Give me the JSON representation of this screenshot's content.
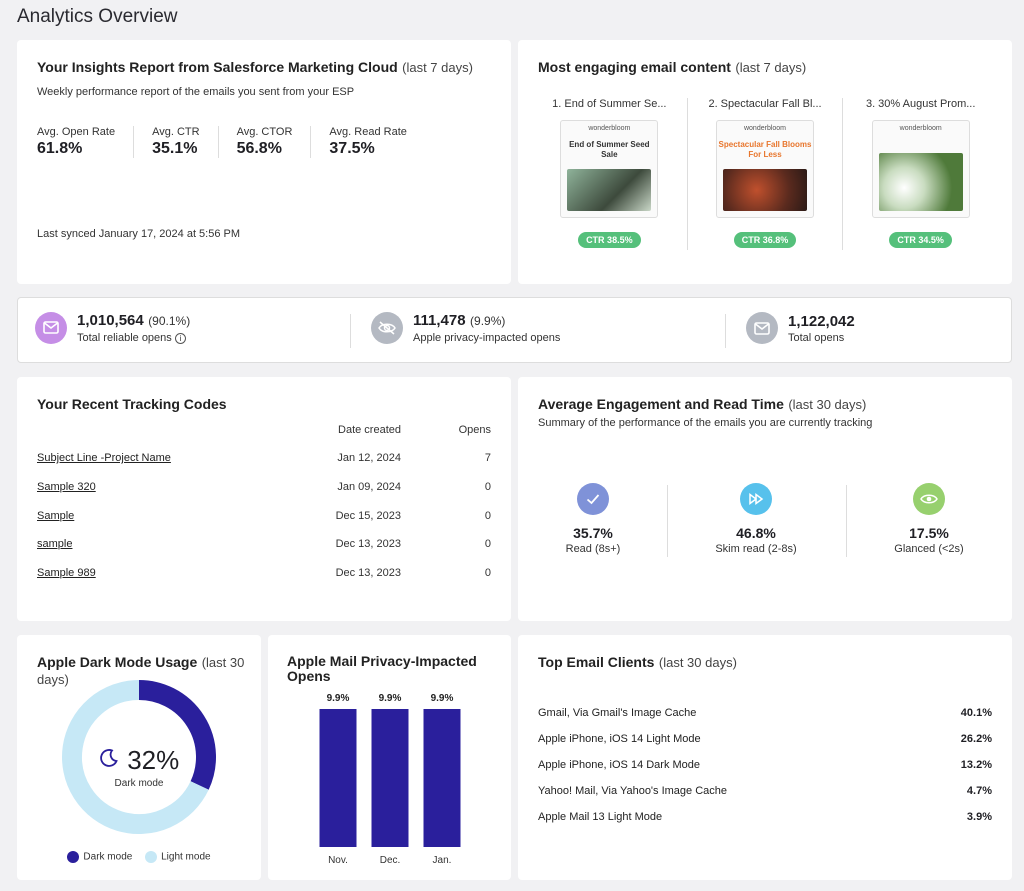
{
  "page_title": "Analytics Overview",
  "insights": {
    "title": "Your Insights Report from Salesforce Marketing Cloud",
    "period": "(last 7 days)",
    "subtitle": "Weekly performance report of the emails you sent from your ESP",
    "metrics": [
      {
        "label": "Avg. Open Rate",
        "value": "61.8%"
      },
      {
        "label": "Avg. CTR",
        "value": "35.1%"
      },
      {
        "label": "Avg. CTOR",
        "value": "56.8%"
      },
      {
        "label": "Avg. Read Rate",
        "value": "37.5%"
      }
    ],
    "synced": "Last synced January 17, 2024 at 5:56 PM"
  },
  "engaging": {
    "title": "Most engaging email content",
    "period": "(last 7 days)",
    "items": [
      {
        "name": "1. End of Summer Se...",
        "preview_logo": "wonderbloom",
        "preview_text": "End of Summer Seed Sale",
        "ctr": "CTR 38.5%"
      },
      {
        "name": "2. Spectacular Fall Bl...",
        "preview_logo": "wonderbloom",
        "preview_text": "Spectacular Fall Blooms For Less",
        "ctr": "CTR 36.8%"
      },
      {
        "name": "3. 30% August Prom...",
        "preview_logo": "wonderbloom",
        "preview_text": "",
        "ctr": "CTR 34.5%"
      }
    ]
  },
  "opens": {
    "reliable": {
      "count": "1,010,564",
      "pct": "(90.1%)",
      "label": "Total reliable opens",
      "info_icon": "info-icon"
    },
    "apple": {
      "count": "111,478",
      "pct": "(9.9%)",
      "label": "Apple privacy-impacted opens"
    },
    "total": {
      "count": "1,122,042",
      "label": "Total opens"
    },
    "colors": {
      "reliable": "#c58ee6",
      "apple": "#b4b9c2",
      "total": "#b4b9c2"
    }
  },
  "tracking": {
    "title": "Your Recent Tracking Codes",
    "col_date": "Date created",
    "col_opens": "Opens",
    "rows": [
      {
        "name": "Subject Line -Project Name",
        "date": "Jan 12, 2024",
        "opens": "7"
      },
      {
        "name": "Sample 320",
        "date": "Jan 09, 2024",
        "opens": "0"
      },
      {
        "name": "Sample",
        "date": "Dec 15, 2023",
        "opens": "0"
      },
      {
        "name": "sample",
        "date": "Dec 13, 2023",
        "opens": "0"
      },
      {
        "name": "Sample 989",
        "date": "Dec 13, 2023",
        "opens": "0"
      }
    ]
  },
  "engagement": {
    "title": "Average Engagement and Read Time",
    "period": "(last 30 days)",
    "subtitle": "Summary of the performance of the emails you are currently tracking",
    "items": [
      {
        "pct": "35.7%",
        "label": "Read (8s+)",
        "icon": "check-icon",
        "color": "#7f92d8"
      },
      {
        "pct": "46.8%",
        "label": "Skim read (2-8s)",
        "icon": "fast-forward-icon",
        "color": "#57c1ec"
      },
      {
        "pct": "17.5%",
        "label": "Glanced (<2s)",
        "icon": "eye-icon",
        "color": "#97d06e"
      }
    ]
  },
  "dark_mode": {
    "title": "Apple Dark Mode Usage",
    "period": "(last 30 days)",
    "center_value": "32%",
    "center_label": "Dark mode",
    "legend": [
      {
        "label": "Dark mode",
        "color": "#2a1f9c"
      },
      {
        "label": "Light mode",
        "color": "#c6e8f6"
      }
    ]
  },
  "privacy": {
    "title": "Apple Mail Privacy-Impacted Opens"
  },
  "clients": {
    "title": "Top Email Clients",
    "period": "(last 30 days)",
    "rows": [
      {
        "name": "Gmail, Via Gmail's Image Cache",
        "pct": "40.1%"
      },
      {
        "name": "Apple iPhone, iOS 14 Light Mode",
        "pct": "26.2%"
      },
      {
        "name": "Apple iPhone, iOS 14 Dark Mode",
        "pct": "13.2%"
      },
      {
        "name": "Yahoo! Mail, Via Yahoo's Image Cache",
        "pct": "4.7%"
      },
      {
        "name": "Apple Mail 13 Light Mode",
        "pct": "3.9%"
      }
    ]
  },
  "chart_data": [
    {
      "type": "pie",
      "title": "Apple Dark Mode Usage",
      "categories": [
        "Dark mode",
        "Light mode"
      ],
      "values": [
        32,
        68
      ]
    },
    {
      "type": "bar",
      "title": "Apple Mail Privacy-Impacted Opens",
      "categories": [
        "Nov.",
        "Dec.",
        "Jan."
      ],
      "values": [
        9.9,
        9.9,
        9.9
      ],
      "value_labels": [
        "9.9%",
        "9.9%",
        "9.9%"
      ],
      "ylim": [
        0,
        9.9
      ],
      "color": "#2a1f9c"
    }
  ]
}
